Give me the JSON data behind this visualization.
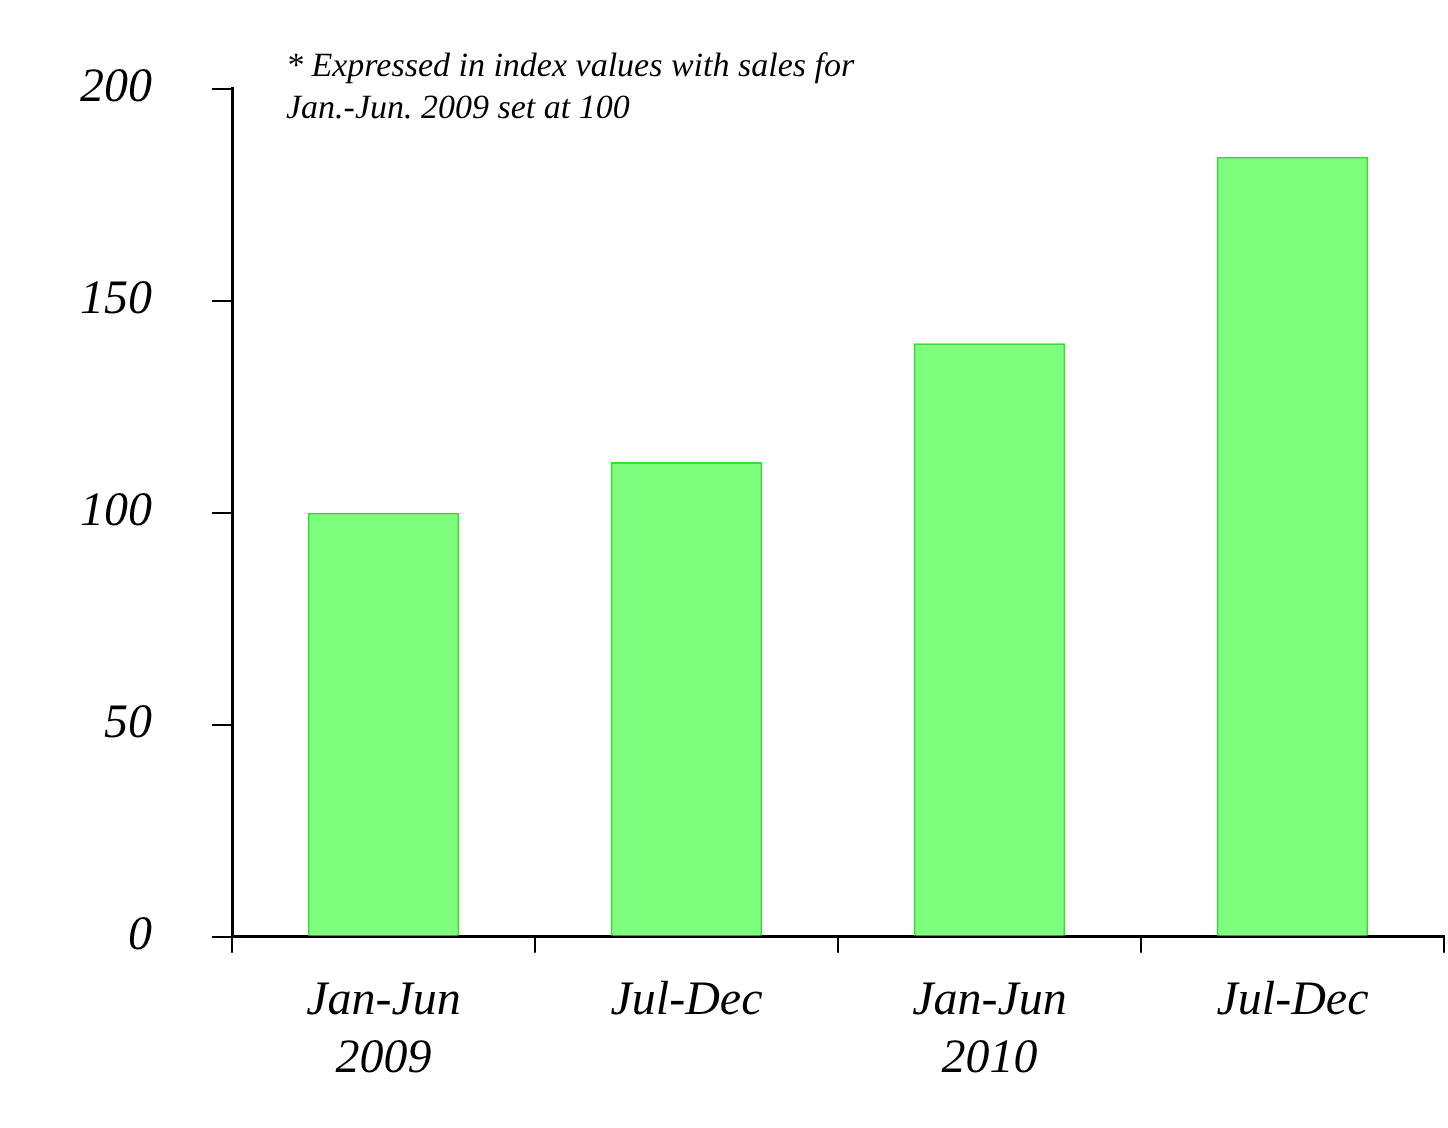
{
  "chart_data": {
    "type": "bar",
    "categories": [
      "Jan-Jun\n2009",
      "Jul-Dec",
      "Jan-Jun\n2010",
      "Jul-Dec"
    ],
    "values": [
      100,
      112,
      140,
      184
    ],
    "color": "#7dff7d",
    "ylim": [
      0,
      200
    ],
    "yticks": [
      0,
      50,
      100,
      150,
      200
    ],
    "grid": false,
    "legend": false,
    "annotations": [
      "* Expressed in index values with sales for Jan.-Jun. 2009 set at 100"
    ]
  }
}
